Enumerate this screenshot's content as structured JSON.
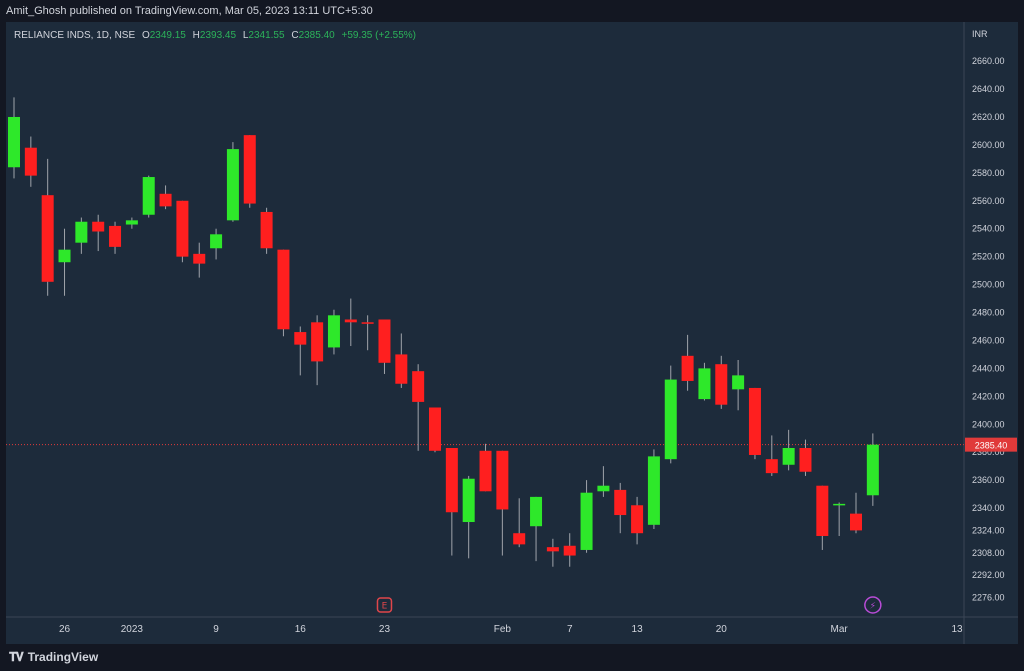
{
  "header": {
    "publisher_text": "Amit_Ghosh published on TradingView.com, Mar 05, 2023 13:11 UTC+5:30"
  },
  "legend": {
    "symbol": "RELIANCE INDS, 1D, NSE",
    "o_label": "O",
    "o_value": "2349.15",
    "h_label": "H",
    "h_value": "2393.45",
    "l_label": "L",
    "l_value": "2341.55",
    "c_label": "C",
    "c_value": "2385.40",
    "change": "+59.35 (+2.55%)"
  },
  "footer": {
    "brand": "TradingView",
    "brand_icon": "tradingview-logo-icon"
  },
  "colors": {
    "background": "#1d2b3b",
    "page": "#131722",
    "up": "#2ee82a",
    "down": "#ff1f1f",
    "wick": "#a0a4ab",
    "price_line": "#e03a3a",
    "text": "#d1d4dc"
  },
  "chart_data": {
    "type": "candlestick",
    "currency": "INR",
    "ylim": [
      2262,
      2688
    ],
    "y_ticks": [
      "2276.00",
      "2292.00",
      "2308.00",
      "2324.00",
      "2340.00",
      "2360.00",
      "2380.00",
      "2400.00",
      "2420.00",
      "2440.00",
      "2460.00",
      "2480.00",
      "2500.00",
      "2520.00",
      "2540.00",
      "2560.00",
      "2580.00",
      "2600.00",
      "2620.00",
      "2640.00",
      "2660.00"
    ],
    "last_price": "2385.40",
    "last_price_value": 2385.4,
    "x_labels": [
      {
        "label": "26",
        "index": 3
      },
      {
        "label": "2023",
        "index": 7
      },
      {
        "label": "9",
        "index": 12
      },
      {
        "label": "16",
        "index": 17
      },
      {
        "label": "23",
        "index": 22
      },
      {
        "label": "Feb",
        "index": 29
      },
      {
        "label": "7",
        "index": 33
      },
      {
        "label": "13",
        "index": 37
      },
      {
        "label": "20",
        "index": 42
      },
      {
        "label": "Mar",
        "index": 49
      },
      {
        "label": "13",
        "index": 56
      }
    ],
    "events": [
      {
        "type": "earnings",
        "label": "E",
        "index": 22,
        "icon": "earnings-icon"
      },
      {
        "type": "dividend",
        "label": "⚡",
        "index": 51,
        "icon": "lightning-icon"
      }
    ],
    "candles": [
      {
        "o": 2584,
        "h": 2634,
        "l": 2576,
        "c": 2620
      },
      {
        "o": 2598,
        "h": 2606,
        "l": 2570,
        "c": 2578
      },
      {
        "o": 2564,
        "h": 2590,
        "l": 2492,
        "c": 2502
      },
      {
        "o": 2516,
        "h": 2540,
        "l": 2492,
        "c": 2525
      },
      {
        "o": 2530,
        "h": 2548,
        "l": 2522,
        "c": 2545
      },
      {
        "o": 2545,
        "h": 2550,
        "l": 2524,
        "c": 2538
      },
      {
        "o": 2542,
        "h": 2545,
        "l": 2522,
        "c": 2527
      },
      {
        "o": 2543,
        "h": 2548,
        "l": 2540,
        "c": 2546
      },
      {
        "o": 2550,
        "h": 2578,
        "l": 2548,
        "c": 2577
      },
      {
        "o": 2565,
        "h": 2571,
        "l": 2554,
        "c": 2556
      },
      {
        "o": 2560,
        "h": 2560,
        "l": 2516,
        "c": 2520
      },
      {
        "o": 2522,
        "h": 2530,
        "l": 2505,
        "c": 2515
      },
      {
        "o": 2526,
        "h": 2540,
        "l": 2518,
        "c": 2536
      },
      {
        "o": 2546,
        "h": 2602,
        "l": 2545,
        "c": 2597
      },
      {
        "o": 2607,
        "h": 2607,
        "l": 2555,
        "c": 2558
      },
      {
        "o": 2552,
        "h": 2555,
        "l": 2522,
        "c": 2526
      },
      {
        "o": 2525,
        "h": 2525,
        "l": 2463,
        "c": 2468
      },
      {
        "o": 2466,
        "h": 2470,
        "l": 2435,
        "c": 2457
      },
      {
        "o": 2473,
        "h": 2478,
        "l": 2428,
        "c": 2445
      },
      {
        "o": 2455,
        "h": 2482,
        "l": 2450,
        "c": 2478
      },
      {
        "o": 2475,
        "h": 2490,
        "l": 2456,
        "c": 2473
      },
      {
        "o": 2473,
        "h": 2478,
        "l": 2453,
        "c": 2472
      },
      {
        "o": 2475,
        "h": 2475,
        "l": 2436,
        "c": 2444
      },
      {
        "o": 2450,
        "h": 2465,
        "l": 2426,
        "c": 2429
      },
      {
        "o": 2438,
        "h": 2443,
        "l": 2381,
        "c": 2416
      },
      {
        "o": 2412,
        "h": 2412,
        "l": 2380,
        "c": 2381
      },
      {
        "o": 2383,
        "h": 2383,
        "l": 2306,
        "c": 2337
      },
      {
        "o": 2330,
        "h": 2363,
        "l": 2304,
        "c": 2361
      },
      {
        "o": 2381,
        "h": 2386,
        "l": 2352,
        "c": 2352
      },
      {
        "o": 2381,
        "h": 2381,
        "l": 2306,
        "c": 2339
      },
      {
        "o": 2322,
        "h": 2347,
        "l": 2312,
        "c": 2314
      },
      {
        "o": 2327,
        "h": 2348,
        "l": 2302,
        "c": 2348
      },
      {
        "o": 2312,
        "h": 2318,
        "l": 2298,
        "c": 2309
      },
      {
        "o": 2313,
        "h": 2322,
        "l": 2298,
        "c": 2306
      },
      {
        "o": 2310,
        "h": 2360,
        "l": 2308,
        "c": 2351
      },
      {
        "o": 2352,
        "h": 2370,
        "l": 2348,
        "c": 2356
      },
      {
        "o": 2353,
        "h": 2358,
        "l": 2322,
        "c": 2335
      },
      {
        "o": 2342,
        "h": 2348,
        "l": 2314,
        "c": 2322
      },
      {
        "o": 2328,
        "h": 2382,
        "l": 2325,
        "c": 2377
      },
      {
        "o": 2375,
        "h": 2442,
        "l": 2372,
        "c": 2432
      },
      {
        "o": 2449,
        "h": 2464,
        "l": 2424,
        "c": 2431
      },
      {
        "o": 2418,
        "h": 2444,
        "l": 2417,
        "c": 2440
      },
      {
        "o": 2443,
        "h": 2449,
        "l": 2411,
        "c": 2414
      },
      {
        "o": 2425,
        "h": 2446,
        "l": 2410,
        "c": 2435
      },
      {
        "o": 2426,
        "h": 2426,
        "l": 2375,
        "c": 2378
      },
      {
        "o": 2375,
        "h": 2392,
        "l": 2363,
        "c": 2365
      },
      {
        "o": 2371,
        "h": 2396,
        "l": 2367,
        "c": 2383
      },
      {
        "o": 2383,
        "h": 2389,
        "l": 2363,
        "c": 2366
      },
      {
        "o": 2356,
        "h": 2356,
        "l": 2310,
        "c": 2320
      },
      {
        "o": 2343,
        "h": 2344,
        "l": 2320,
        "c": 2343
      },
      {
        "o": 2336,
        "h": 2351,
        "l": 2322,
        "c": 2324
      },
      {
        "o": 2349.15,
        "h": 2393.45,
        "l": 2341.55,
        "c": 2385.4
      }
    ]
  }
}
